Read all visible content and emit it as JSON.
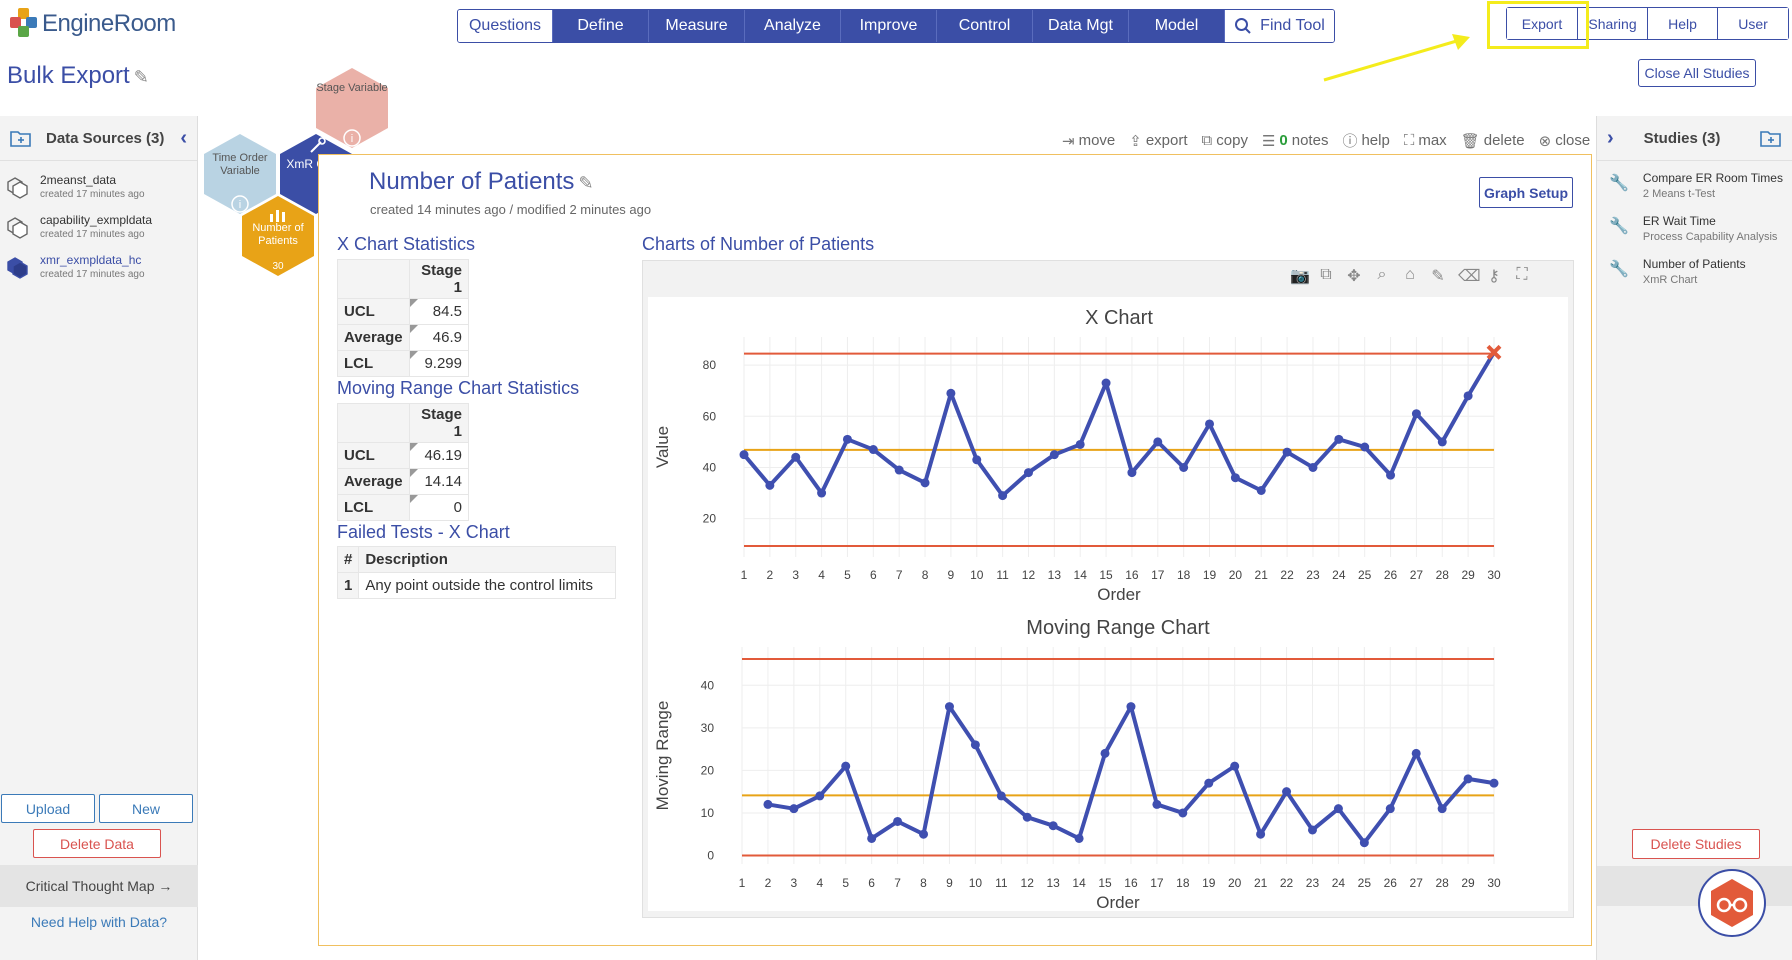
{
  "app": {
    "logo_text": "EngineRoom",
    "page_title": "Bulk Export"
  },
  "main_nav": [
    "Questions",
    "Define",
    "Measure",
    "Analyze",
    "Improve",
    "Control",
    "Data Mgt",
    "Model",
    "Find Tool"
  ],
  "util_nav": [
    "Export",
    "Sharing",
    "Help",
    "User"
  ],
  "close_all_label": "Close All Studies",
  "left_panel": {
    "title": "Data Sources (3)",
    "items": [
      {
        "name": "2meanst_data",
        "meta": "created 17 minutes ago"
      },
      {
        "name": "capability_exmpldata",
        "meta": "created 17 minutes ago"
      },
      {
        "name": "xmr_exmpldata_hc",
        "meta": "created 17 minutes ago"
      }
    ],
    "upload_label": "Upload",
    "new_label": "New",
    "delete_label": "Delete Data",
    "critical_thought_map": "Critical Thought Map →",
    "need_help": "Need Help with Data?"
  },
  "right_panel": {
    "title": "Studies (3)",
    "items": [
      {
        "name": "Compare ER Room Times",
        "meta": "2 Means t-Test"
      },
      {
        "name": "ER Wait Time",
        "meta": "Process Capability Analysis"
      },
      {
        "name": "Number of Patients",
        "meta": "XmR Chart"
      }
    ],
    "delete_label": "Delete Studies"
  },
  "hexmap": {
    "stage_variable": "Stage Variable",
    "time_order_variable": "Time Order Variable",
    "xmr_chart": "XmR Chart",
    "number_of_patients": "Number of Patients",
    "count": "30"
  },
  "toolbar": {
    "move": "move",
    "export": "export",
    "copy": "copy",
    "notes_count": "0",
    "notes": "notes",
    "help": "help",
    "max": "max",
    "delete": "delete",
    "close": "close"
  },
  "study": {
    "title": "Number of Patients",
    "meta": "created 14 minutes ago / modified 2 minutes ago",
    "graph_setup": "Graph Setup"
  },
  "x_stats": {
    "heading": "X Chart Statistics",
    "column": "Stage 1",
    "rows": [
      {
        "label": "UCL",
        "value": "84.5"
      },
      {
        "label": "Average",
        "value": "46.9"
      },
      {
        "label": "LCL",
        "value": "9.299"
      }
    ]
  },
  "mr_stats": {
    "heading": "Moving Range Chart Statistics",
    "column": "Stage 1",
    "rows": [
      {
        "label": "UCL",
        "value": "46.19"
      },
      {
        "label": "Average",
        "value": "14.14"
      },
      {
        "label": "LCL",
        "value": "0"
      }
    ]
  },
  "failed_tests": {
    "heading": "Failed Tests - X Chart",
    "col_num": "#",
    "col_desc": "Description",
    "rows": [
      {
        "num": "1",
        "desc": "Any point outside the control limits"
      }
    ]
  },
  "charts_heading": "Charts of Number of Patients",
  "chart_data": [
    {
      "type": "line",
      "title": "X Chart",
      "xlabel": "Order",
      "ylabel": "Value",
      "x": [
        1,
        2,
        3,
        4,
        5,
        6,
        7,
        8,
        9,
        10,
        11,
        12,
        13,
        14,
        15,
        16,
        17,
        18,
        19,
        20,
        21,
        22,
        23,
        24,
        25,
        26,
        27,
        28,
        29,
        30
      ],
      "values": [
        45,
        33,
        44,
        30,
        51,
        47,
        39,
        34,
        69,
        43,
        29,
        38,
        45,
        49,
        73,
        38,
        50,
        40,
        57,
        36,
        31,
        46,
        40,
        51,
        48,
        37,
        61,
        50,
        68,
        85
      ],
      "ucl": 84.5,
      "center": 46.9,
      "lcl": 9.299,
      "yticks": [
        20,
        40,
        60,
        80
      ],
      "ylim": [
        5,
        91
      ],
      "out_of_control_x": [
        30
      ]
    },
    {
      "type": "line",
      "title": "Moving Range Chart",
      "xlabel": "Order",
      "ylabel": "Moving Range",
      "x": [
        2,
        3,
        4,
        5,
        6,
        7,
        8,
        9,
        10,
        11,
        12,
        13,
        14,
        15,
        16,
        17,
        18,
        19,
        20,
        21,
        22,
        23,
        24,
        25,
        26,
        27,
        28,
        29,
        30
      ],
      "values": [
        12,
        11,
        14,
        21,
        4,
        8,
        5,
        35,
        26,
        14,
        9,
        7,
        4,
        24,
        35,
        12,
        10,
        17,
        21,
        5,
        15,
        6,
        11,
        3,
        11,
        24,
        11,
        18,
        17
      ],
      "ucl": 46.19,
      "center": 14.14,
      "lcl": 0,
      "yticks": [
        0,
        10,
        20,
        30,
        40
      ],
      "ylim": [
        -2,
        49
      ]
    }
  ],
  "colors": {
    "brand": "#3b4ea6",
    "series": "#3f4fb0",
    "limit": "#e25a3a",
    "center": "#e8a317",
    "highlight": "#f4ec1c"
  }
}
